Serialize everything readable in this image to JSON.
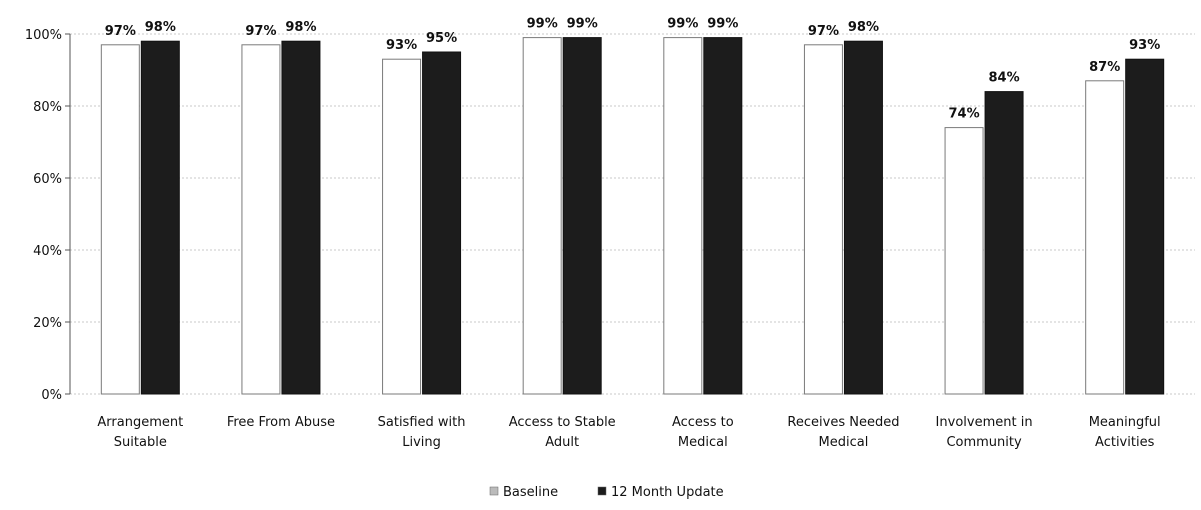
{
  "chart_data": {
    "type": "bar",
    "categories": [
      [
        "Arrangement",
        "Suitable"
      ],
      [
        "Free From Abuse"
      ],
      [
        "Satisfied with",
        "Living"
      ],
      [
        "Access to Stable",
        "Adult"
      ],
      [
        "Access to",
        "Medical"
      ],
      [
        "Receives Needed",
        "Medical"
      ],
      [
        "Involvement in",
        "Community"
      ],
      [
        "Meaningful",
        "Activities"
      ]
    ],
    "series": [
      {
        "name": "Baseline",
        "values": [
          97,
          97,
          93,
          99,
          99,
          97,
          74,
          87
        ],
        "labels": [
          "97%",
          "97%",
          "93%",
          "99%",
          "99%",
          "97%",
          "74%",
          "87%"
        ],
        "color": "#ffffff"
      },
      {
        "name": "12 Month Update",
        "values": [
          98,
          98,
          95,
          99,
          99,
          98,
          84,
          93
        ],
        "labels": [
          "98%",
          "98%",
          "95%",
          "99%",
          "99%",
          "98%",
          "84%",
          "93%"
        ],
        "color": "#1c1c1c"
      }
    ],
    "ylim": [
      0,
      100
    ],
    "yticks": [
      "0%",
      "20%",
      "40%",
      "60%",
      "80%",
      "100%"
    ],
    "grid": true,
    "legend_position": "bottom"
  }
}
